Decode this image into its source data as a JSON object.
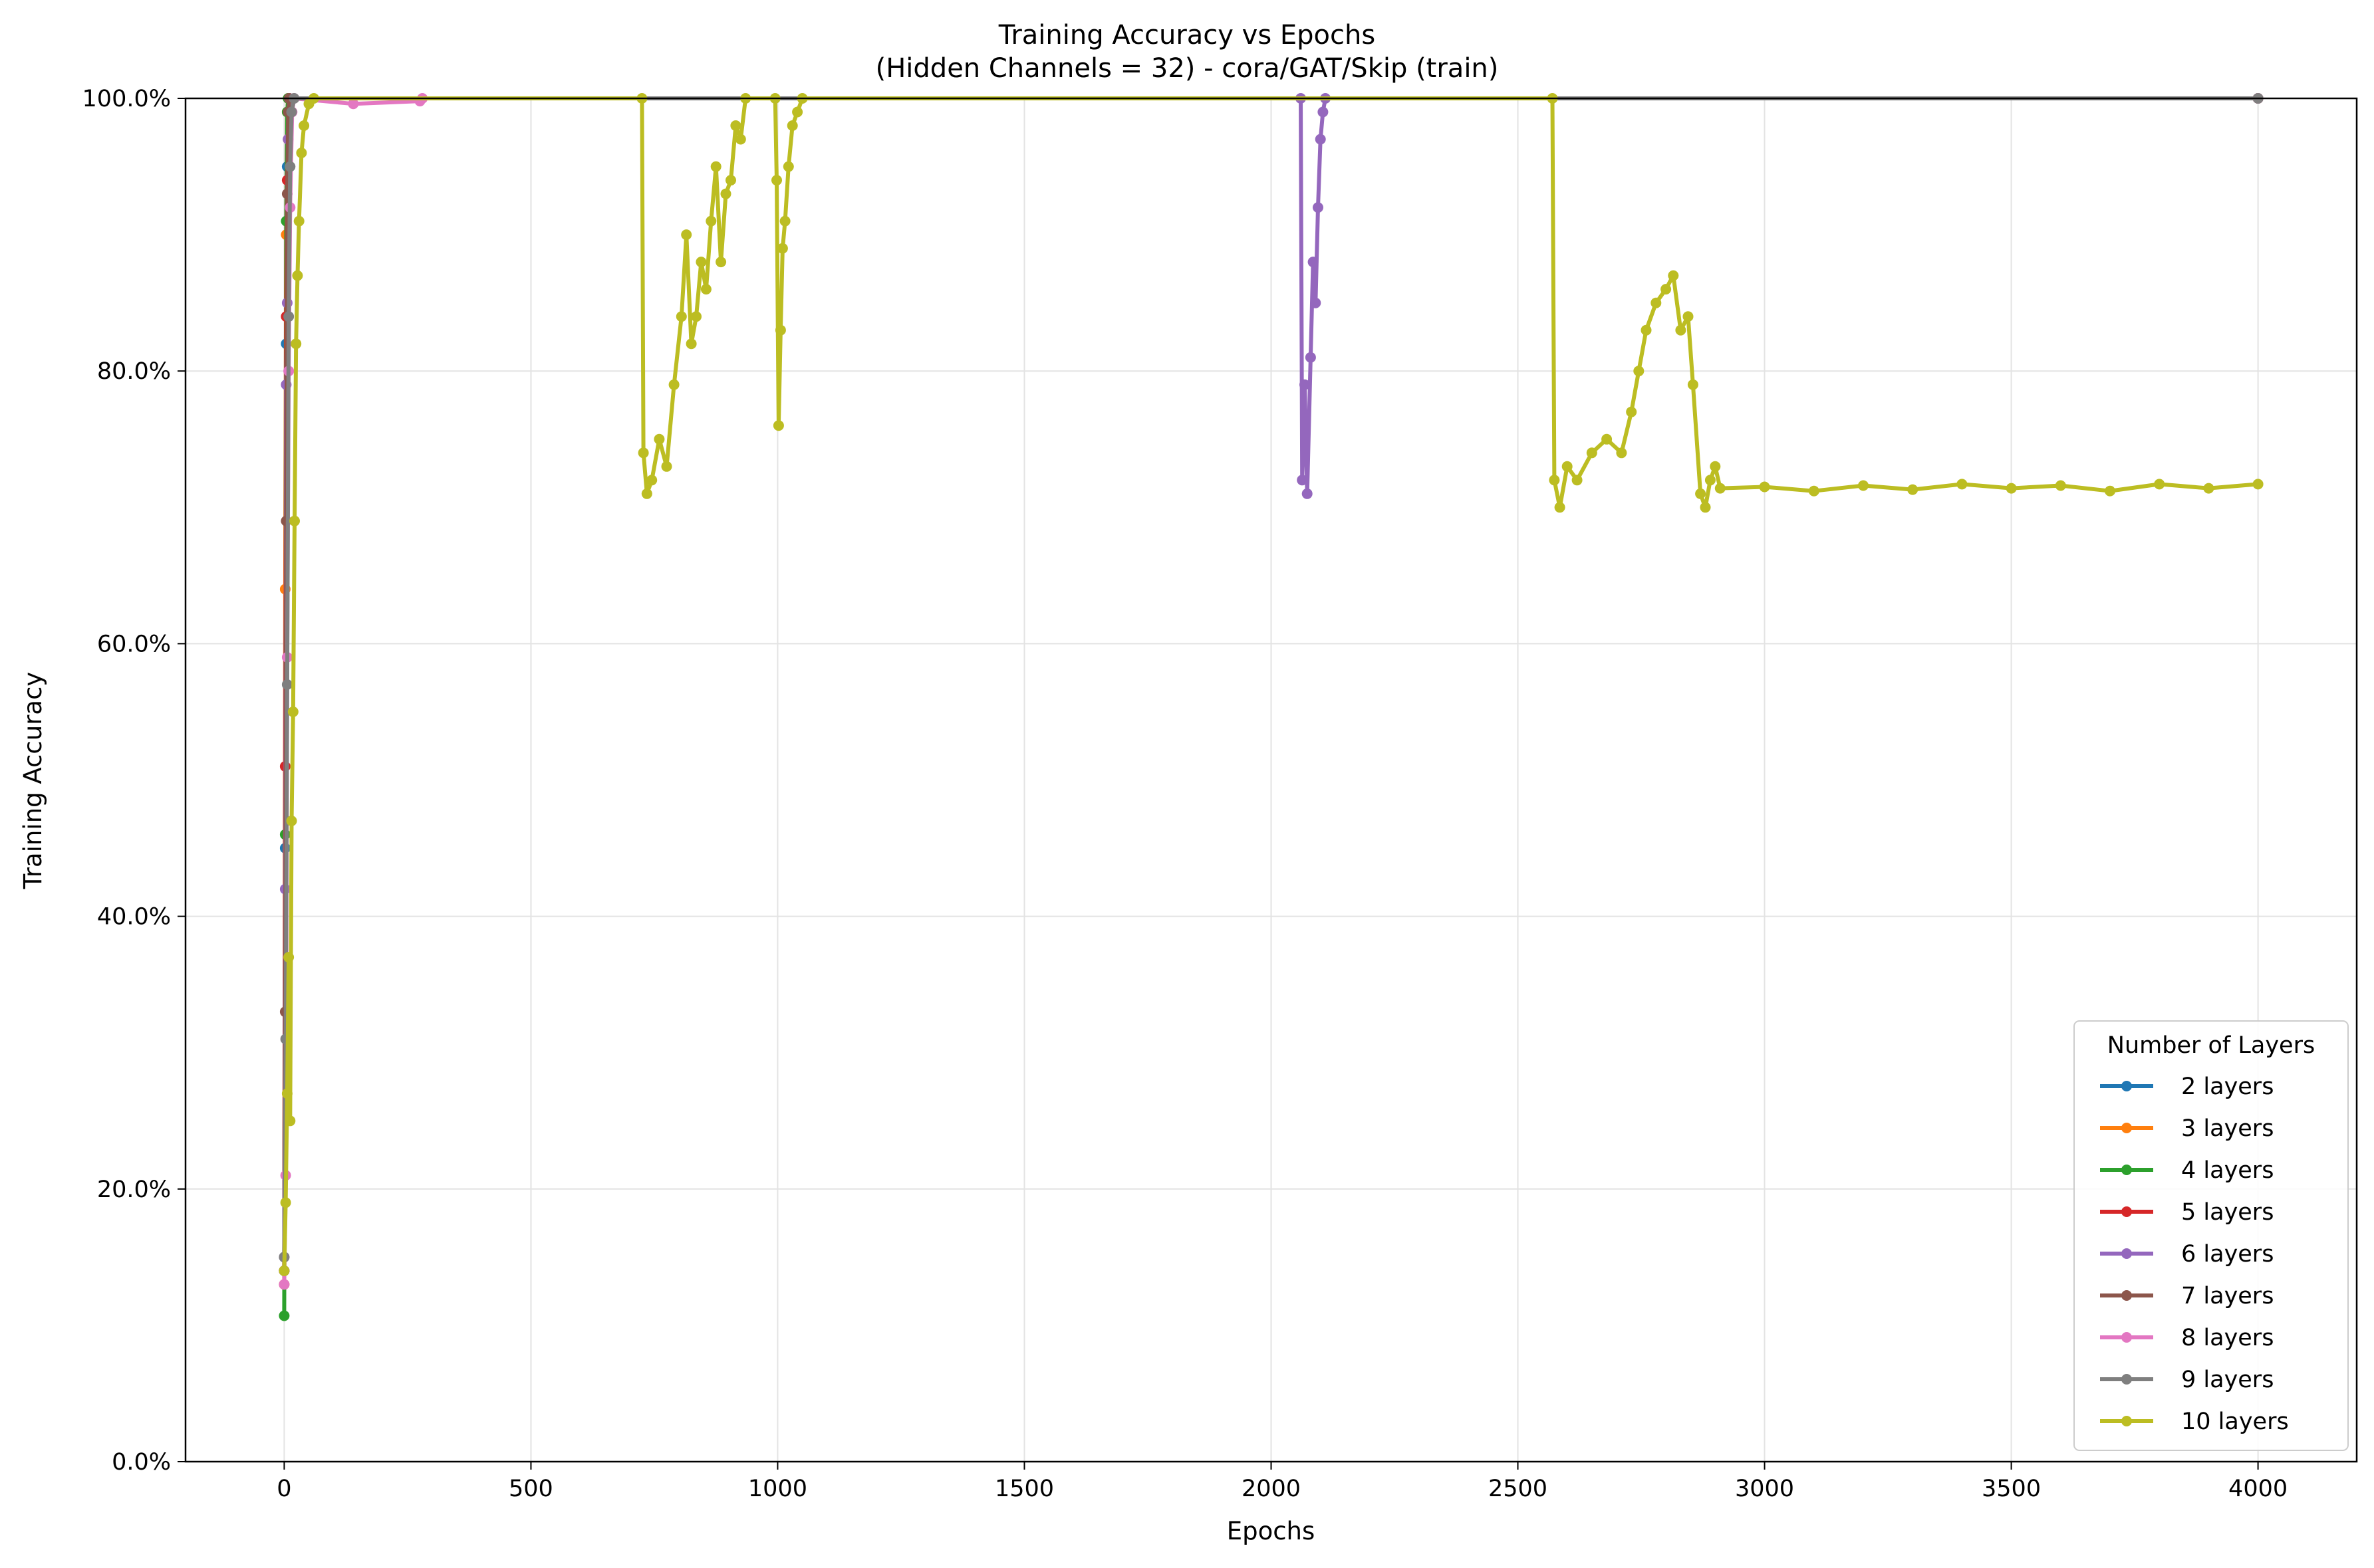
{
  "chart_data": {
    "type": "line",
    "title": "Training Accuracy vs Epochs",
    "subtitle": "(Hidden Channels = 32) - cora/GAT/Skip (train)",
    "xlabel": "Epochs",
    "ylabel": "Training Accuracy",
    "xlim": [
      -200,
      4200
    ],
    "ylim": [
      0,
      1
    ],
    "x_ticks": [
      0,
      500,
      1000,
      1500,
      2000,
      2500,
      3000,
      3500,
      4000
    ],
    "y_ticks": [
      0,
      0.2,
      0.4,
      0.6,
      0.8,
      1.0
    ],
    "y_tick_labels": [
      "0.0%",
      "20.0%",
      "40.0%",
      "60.0%",
      "80.0%",
      "100.0%"
    ],
    "grid": true,
    "legend_title": "Number of Layers",
    "legend_position": "lower right",
    "series": [
      {
        "name": "2 layers",
        "color": "#1f77b4",
        "points": [
          [
            0,
            0.14
          ],
          [
            2,
            0.45
          ],
          [
            4,
            0.82
          ],
          [
            6,
            0.95
          ],
          [
            8,
            0.99
          ],
          [
            10,
            1.0
          ],
          [
            4000,
            1.0
          ]
        ]
      },
      {
        "name": "3 layers",
        "color": "#ff7f0e",
        "points": [
          [
            0,
            0.13
          ],
          [
            2,
            0.64
          ],
          [
            4,
            0.9
          ],
          [
            6,
            0.99
          ],
          [
            8,
            1.0
          ],
          [
            4000,
            1.0
          ]
        ]
      },
      {
        "name": "4 layers",
        "color": "#2ca02c",
        "points": [
          [
            0,
            0.107
          ],
          [
            2,
            0.46
          ],
          [
            4,
            0.91
          ],
          [
            6,
            0.99
          ],
          [
            8,
            1.0
          ],
          [
            4000,
            1.0
          ]
        ]
      },
      {
        "name": "5 layers",
        "color": "#d62728",
        "points": [
          [
            0,
            0.14
          ],
          [
            2,
            0.51
          ],
          [
            4,
            0.84
          ],
          [
            6,
            0.94
          ],
          [
            8,
            0.97
          ],
          [
            10,
            1.0
          ],
          [
            4000,
            1.0
          ]
        ]
      },
      {
        "name": "6 layers",
        "color": "#9467bd",
        "points": [
          [
            0,
            0.15
          ],
          [
            2,
            0.42
          ],
          [
            4,
            0.79
          ],
          [
            6,
            0.85
          ],
          [
            8,
            0.97
          ],
          [
            10,
            1.0
          ],
          [
            2060,
            1.0
          ],
          [
            2063,
            0.72
          ],
          [
            2068,
            0.79
          ],
          [
            2073,
            0.71
          ],
          [
            2080,
            0.81
          ],
          [
            2085,
            0.88
          ],
          [
            2090,
            0.85
          ],
          [
            2095,
            0.92
          ],
          [
            2100,
            0.97
          ],
          [
            2105,
            0.99
          ],
          [
            2110,
            1.0
          ],
          [
            4000,
            1.0
          ]
        ]
      },
      {
        "name": "7 layers",
        "color": "#8c564b",
        "points": [
          [
            0,
            0.14
          ],
          [
            2,
            0.33
          ],
          [
            4,
            0.69
          ],
          [
            6,
            0.93
          ],
          [
            8,
            0.99
          ],
          [
            10,
            1.0
          ],
          [
            4000,
            1.0
          ]
        ]
      },
      {
        "name": "8 layers",
        "color": "#e377c2",
        "points": [
          [
            0,
            0.13
          ],
          [
            3,
            0.21
          ],
          [
            6,
            0.59
          ],
          [
            9,
            0.8
          ],
          [
            12,
            0.92
          ],
          [
            16,
            0.99
          ],
          [
            20,
            1.0
          ],
          [
            140,
            0.996
          ],
          [
            275,
            0.998
          ],
          [
            280,
            1.0
          ],
          [
            4000,
            1.0
          ]
        ]
      },
      {
        "name": "9 layers",
        "color": "#7f7f7f",
        "points": [
          [
            0,
            0.15
          ],
          [
            3,
            0.31
          ],
          [
            6,
            0.57
          ],
          [
            9,
            0.84
          ],
          [
            12,
            0.95
          ],
          [
            15,
            0.99
          ],
          [
            20,
            1.0
          ],
          [
            4000,
            1.0
          ]
        ]
      },
      {
        "name": "10 layers",
        "color": "#bcbd22",
        "points": [
          [
            0,
            0.14
          ],
          [
            3,
            0.19
          ],
          [
            6,
            0.27
          ],
          [
            9,
            0.37
          ],
          [
            12,
            0.25
          ],
          [
            15,
            0.47
          ],
          [
            18,
            0.55
          ],
          [
            21,
            0.69
          ],
          [
            24,
            0.82
          ],
          [
            27,
            0.87
          ],
          [
            30,
            0.91
          ],
          [
            35,
            0.96
          ],
          [
            40,
            0.98
          ],
          [
            50,
            0.996
          ],
          [
            60,
            1.0
          ],
          [
            725,
            1.0
          ],
          [
            728,
            0.74
          ],
          [
            735,
            0.71
          ],
          [
            745,
            0.72
          ],
          [
            760,
            0.75
          ],
          [
            775,
            0.73
          ],
          [
            790,
            0.79
          ],
          [
            805,
            0.84
          ],
          [
            815,
            0.9
          ],
          [
            825,
            0.82
          ],
          [
            835,
            0.84
          ],
          [
            845,
            0.88
          ],
          [
            855,
            0.86
          ],
          [
            865,
            0.91
          ],
          [
            875,
            0.95
          ],
          [
            885,
            0.88
          ],
          [
            895,
            0.93
          ],
          [
            905,
            0.94
          ],
          [
            915,
            0.98
          ],
          [
            925,
            0.97
          ],
          [
            935,
            1.0
          ],
          [
            995,
            1.0
          ],
          [
            998,
            0.94
          ],
          [
            1002,
            0.76
          ],
          [
            1006,
            0.83
          ],
          [
            1010,
            0.89
          ],
          [
            1015,
            0.91
          ],
          [
            1022,
            0.95
          ],
          [
            1030,
            0.98
          ],
          [
            1040,
            0.99
          ],
          [
            1050,
            1.0
          ],
          [
            2570,
            1.0
          ],
          [
            2574,
            0.72
          ],
          [
            2585,
            0.7
          ],
          [
            2600,
            0.73
          ],
          [
            2620,
            0.72
          ],
          [
            2650,
            0.74
          ],
          [
            2680,
            0.75
          ],
          [
            2710,
            0.74
          ],
          [
            2730,
            0.77
          ],
          [
            2745,
            0.8
          ],
          [
            2760,
            0.83
          ],
          [
            2780,
            0.85
          ],
          [
            2800,
            0.86
          ],
          [
            2815,
            0.87
          ],
          [
            2830,
            0.83
          ],
          [
            2845,
            0.84
          ],
          [
            2855,
            0.79
          ],
          [
            2870,
            0.71
          ],
          [
            2880,
            0.7
          ],
          [
            2890,
            0.72
          ],
          [
            2900,
            0.73
          ],
          [
            2910,
            0.714
          ],
          [
            3000,
            0.715
          ],
          [
            3100,
            0.712
          ],
          [
            3200,
            0.716
          ],
          [
            3300,
            0.713
          ],
          [
            3400,
            0.717
          ],
          [
            3500,
            0.714
          ],
          [
            3600,
            0.716
          ],
          [
            3700,
            0.712
          ],
          [
            3800,
            0.717
          ],
          [
            3900,
            0.714
          ],
          [
            4000,
            0.717
          ]
        ]
      }
    ]
  }
}
